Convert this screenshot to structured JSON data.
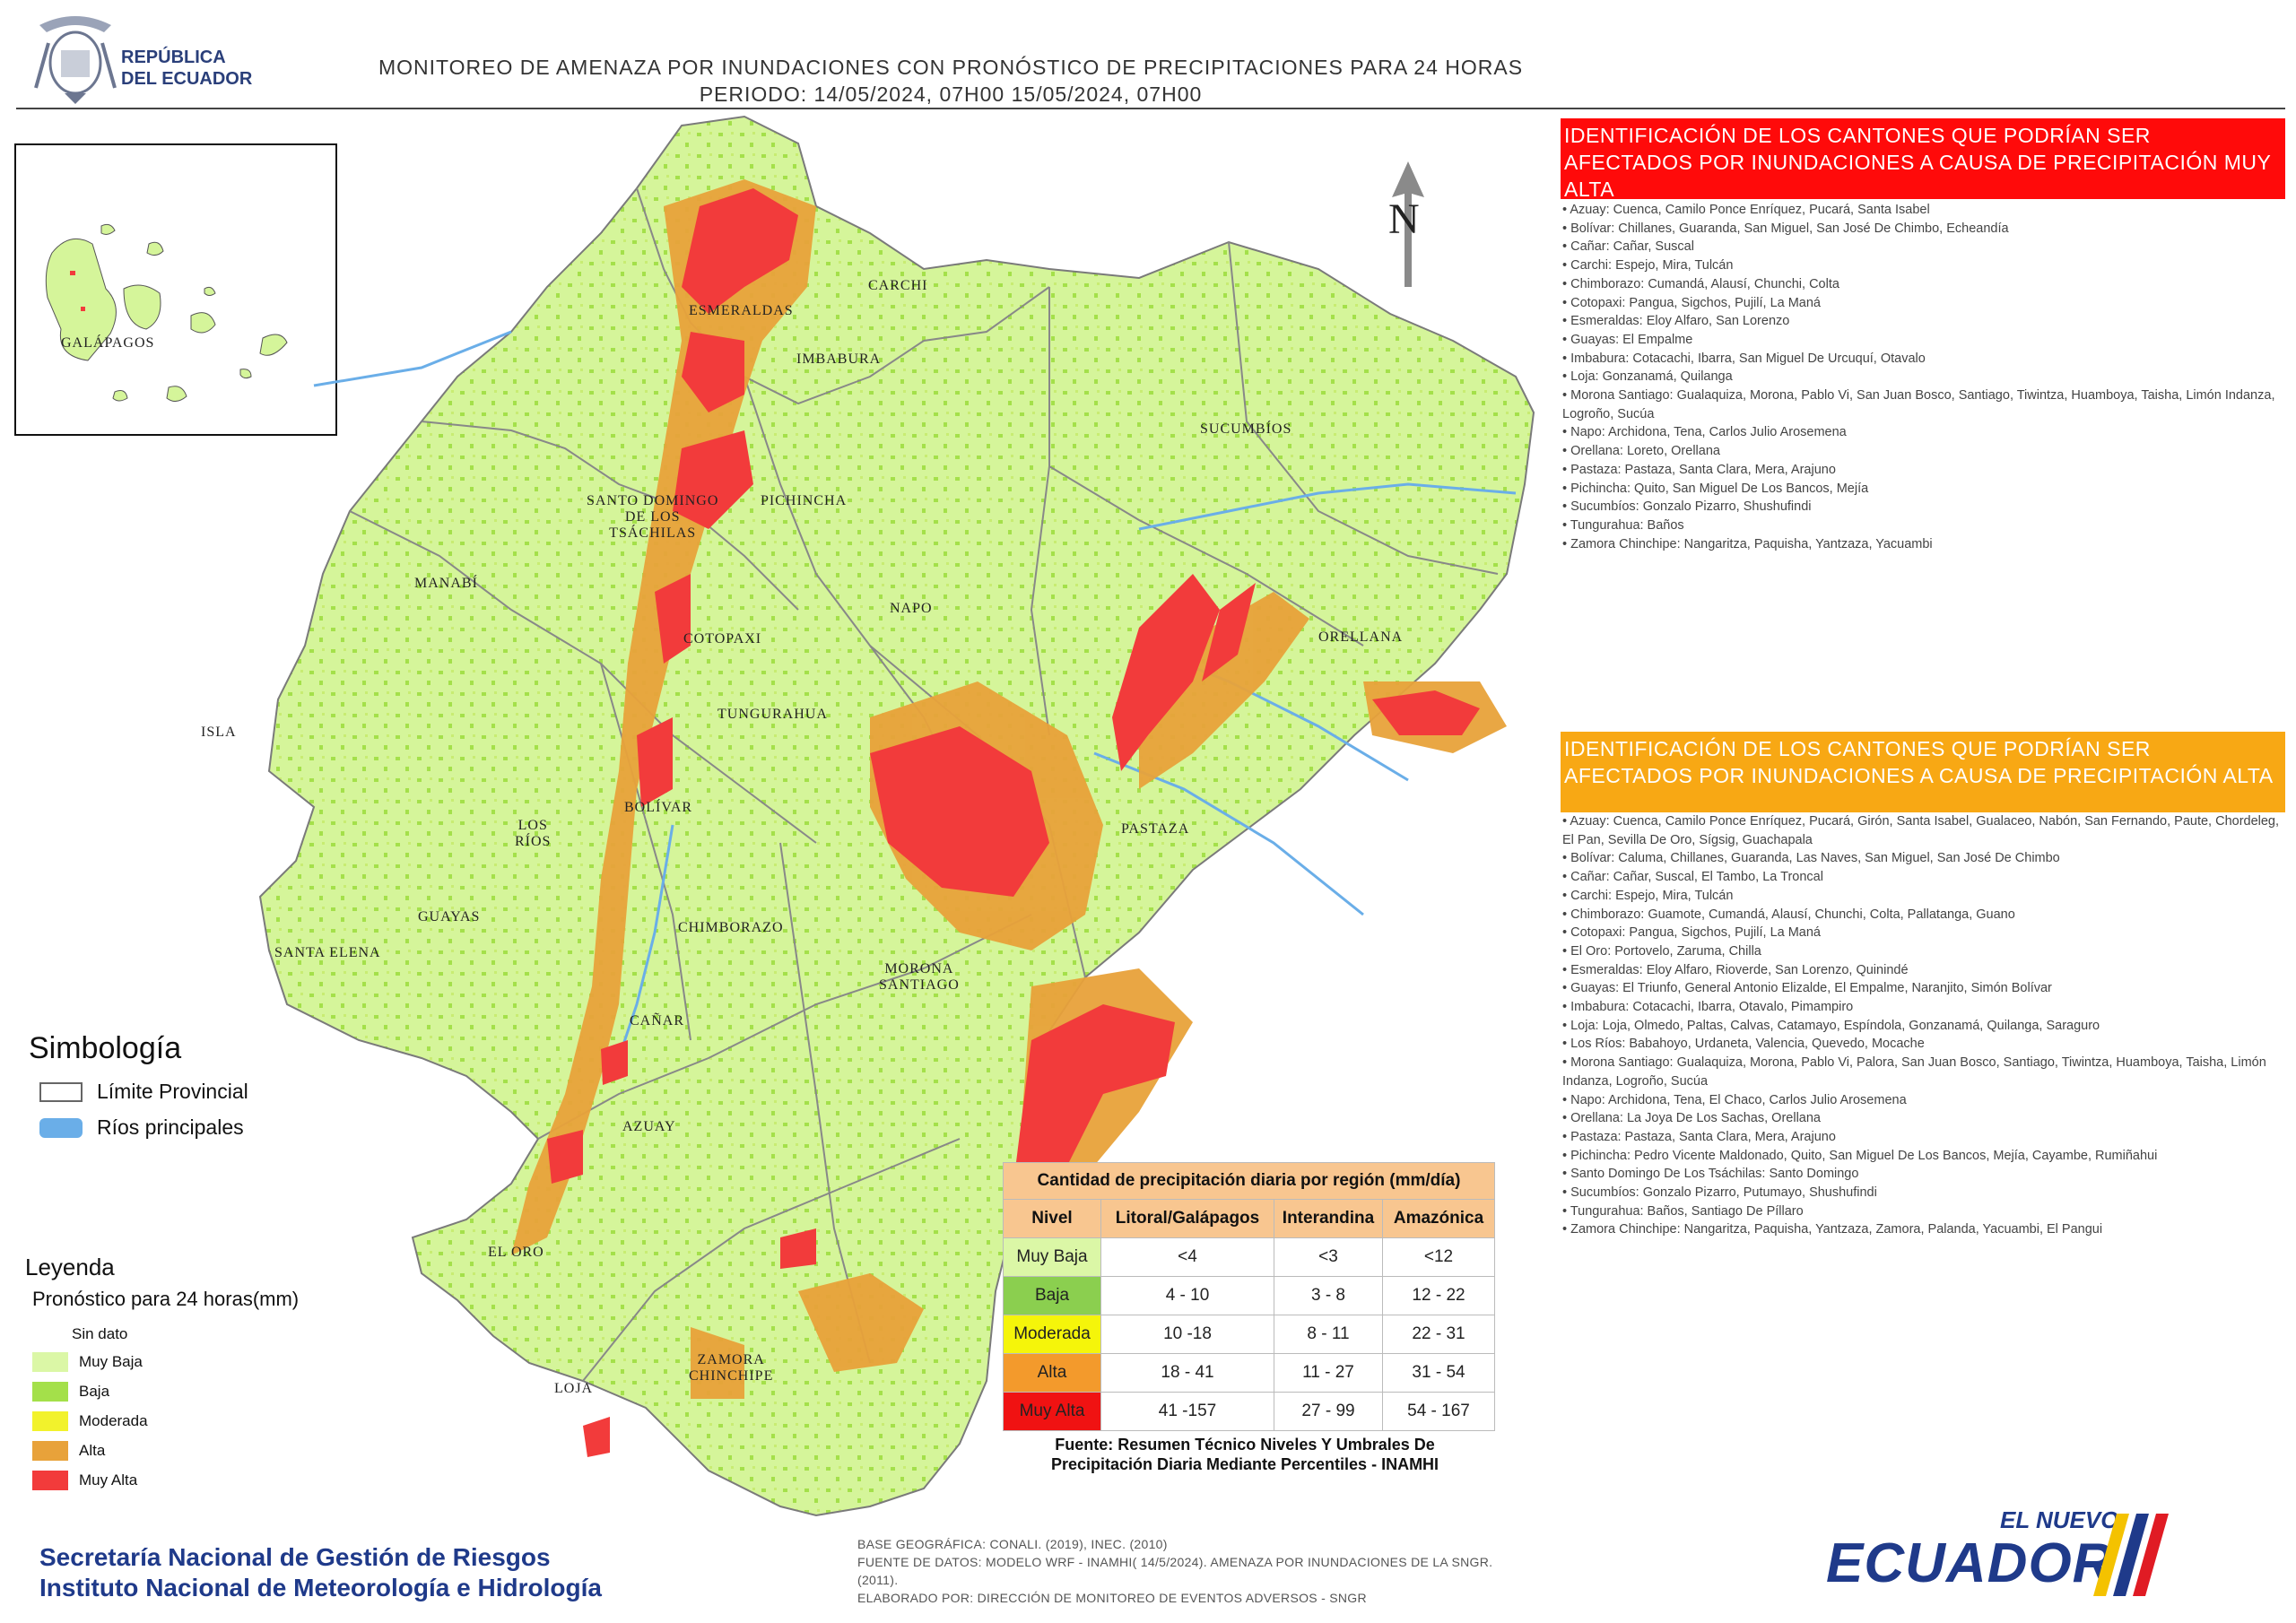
{
  "header": {
    "logo_line1": "REPÚBLICA",
    "logo_line2": "DEL ECUADOR",
    "title_line1": "MONITOREO DE AMENAZA POR INUNDACIONES  CON PRONÓSTICO DE  PRECIPITACIONES PARA 24 HORAS",
    "title_line2": "PERIODO: 14/05/2024, 07H00 15/05/2024, 07H00"
  },
  "map": {
    "inset_label": "GALÁPAGOS",
    "north_label": "N",
    "provinces": {
      "carchi": "CARCHI",
      "esmeraldas": "ESMERALDAS",
      "imbabura": "IMBABURA",
      "sucumbios": "SUCUMBÍOS",
      "santo_domingo": "SANTO DOMINGO\nDE LOS\nTSÁCHILAS",
      "pichincha": "PICHINCHA",
      "manabi": "MANABÍ",
      "napo": "NAPO",
      "orellana": "ORELLANA",
      "cotopaxi": "COTOPAXI",
      "isla": "ISLA",
      "tungurahua": "TUNGURAHUA",
      "bolivar": "BOLÍVAR",
      "los_rios": "LOS\nRÍOS",
      "pastaza": "PASTAZA",
      "guayas": "GUAYAS",
      "chimborazo": "CHIMBORAZO",
      "santa_elena": "SANTA ELENA",
      "morona": "MORONA\nSANTIAGO",
      "canar": "CAÑAR",
      "azuay": "AZUAY",
      "el_oro": "EL ORO",
      "zamora": "ZAMORA\nCHINCHIPE",
      "loja": "LOJA"
    }
  },
  "panel_muy_alta": {
    "title": "IDENTIFICACIÓN DE LOS CANTONES QUE PODRÍAN SER AFECTADOS POR INUNDACIONES  A CAUSA DE PRECIPITACIÓN MUY ALTA",
    "items": [
      "Azuay: Cuenca, Camilo Ponce Enríquez, Pucará, Santa Isabel",
      "Bolívar: Chillanes, Guaranda, San Miguel, San José De Chimbo, Echeandía",
      "Cañar: Cañar, Suscal",
      "Carchi: Espejo, Mira, Tulcán",
      "Chimborazo: Cumandá, Alausí, Chunchi, Colta",
      "Cotopaxi: Pangua, Sigchos, Pujilí, La Maná",
      "Esmeraldas: Eloy Alfaro, San Lorenzo",
      "Guayas: El Empalme",
      "Imbabura: Cotacachi, Ibarra, San Miguel De Urcuquí, Otavalo",
      "Loja: Gonzanamá, Quilanga",
      "Morona Santiago: Gualaquiza, Morona, Pablo Vi, San Juan Bosco, Santiago, Tiwintza, Huamboya, Taisha, Limón Indanza, Logroño, Sucúa",
      "Napo: Archidona, Tena, Carlos Julio Arosemena",
      "Orellana: Loreto, Orellana",
      "Pastaza: Pastaza, Santa Clara, Mera, Arajuno",
      "Pichincha: Quito, San Miguel De Los Bancos, Mejía",
      "Sucumbíos: Gonzalo Pizarro, Shushufindi",
      "Tungurahua: Baños",
      "Zamora Chinchipe: Nangaritza, Paquisha, Yantzaza, Yacuambi"
    ]
  },
  "panel_alta": {
    "title": "IDENTIFICACIÓN DE LOS CANTONES QUE  PODRÍAN SER AFECTADOS POR INUNDACIONES  A CAUSA DE PRECIPITACIÓN  ALTA",
    "items": [
      "Azuay: Cuenca, Camilo Ponce Enríquez, Pucará, Girón, Santa Isabel, Gualaceo, Nabón, San Fernando, Paute, Chordeleg, El Pan, Sevilla De Oro, Sígsig, Guachapala",
      "Bolívar: Caluma, Chillanes, Guaranda, Las Naves, San Miguel, San José De Chimbo",
      "Cañar: Cañar, Suscal, El Tambo, La Troncal",
      "Carchi: Espejo, Mira, Tulcán",
      "Chimborazo: Guamote, Cumandá, Alausí, Chunchi, Colta, Pallatanga, Guano",
      "Cotopaxi: Pangua, Sigchos, Pujilí, La Maná",
      "El Oro: Portovelo, Zaruma, Chilla",
      "Esmeraldas: Eloy Alfaro, Rioverde, San Lorenzo, Quinindé",
      "Guayas: El Triunfo, General Antonio Elizalde, El Empalme, Naranjito, Simón Bolívar",
      "Imbabura: Cotacachi, Ibarra, Otavalo, Pimampiro",
      "Loja: Loja, Olmedo, Paltas, Calvas, Catamayo, Espíndola, Gonzanamá, Quilanga, Saraguro",
      "Los Ríos: Babahoyo, Urdaneta, Valencia, Quevedo, Mocache",
      "Morona Santiago: Gualaquiza, Morona, Pablo Vi, Palora, San Juan Bosco, Santiago, Tiwintza, Huamboya, Taisha, Limón Indanza, Logroño, Sucúa",
      "Napo: Archidona, Tena, El Chaco, Carlos Julio Arosemena",
      "Orellana: La Joya De Los Sachas, Orellana",
      "Pastaza: Pastaza, Santa Clara, Mera, Arajuno",
      "Pichincha: Pedro Vicente Maldonado, Quito, San Miguel De Los Bancos, Mejía, Cayambe, Rumiñahui",
      "Santo Domingo De Los Tsáchilas: Santo Domingo",
      "Sucumbíos: Gonzalo Pizarro, Putumayo, Shushufindi",
      "Tungurahua: Baños, Santiago De Píllaro",
      "Zamora Chinchipe: Nangaritza, Paquisha, Yantzaza, Zamora, Palanda, Yacuambi, El Pangui"
    ]
  },
  "simbologia": {
    "title": "Simbología",
    "limite": "Límite Provincial",
    "rios": "Ríos principales"
  },
  "leyenda": {
    "title": "Leyenda",
    "subtitle": "Pronóstico para 24 horas(mm)",
    "sin_dato": "Sin dato",
    "classes": [
      {
        "label": "Muy Baja",
        "color": "#dbf7a6"
      },
      {
        "label": "Baja",
        "color": "#a4e04a"
      },
      {
        "label": "Moderada",
        "color": "#f2f22c"
      },
      {
        "label": "Alta",
        "color": "#e8a23a"
      },
      {
        "label": "Muy Alta",
        "color": "#f23b3b"
      }
    ]
  },
  "precip_table": {
    "title": "Cantidad de precipitación diaria por región (mm/día)",
    "headers": [
      "Nivel",
      "Litoral/Galápagos",
      "Interandina",
      "Amazónica"
    ],
    "rows": [
      {
        "nivel": "Muy Baja",
        "litoral": "<4",
        "interandina": "<3",
        "amazonica": "<12",
        "color": "#dbf7a6"
      },
      {
        "nivel": "Baja",
        "litoral": "4 - 10",
        "interandina": "3 - 8",
        "amazonica": "12 - 22",
        "color": "#8bcf4f"
      },
      {
        "nivel": "Moderada",
        "litoral": "10 -18",
        "interandina": "8 - 11",
        "amazonica": "22 - 31",
        "color": "#f5f50a"
      },
      {
        "nivel": "Alta",
        "litoral": "18 - 41",
        "interandina": "11 - 27",
        "amazonica": "31 - 54",
        "color": "#f39a2c"
      },
      {
        "nivel": "Muy Alta",
        "litoral": "41 -157",
        "interandina": "27 - 99",
        "amazonica": "54 - 167",
        "color": "#f01212"
      }
    ],
    "source_line1": "Fuente: Resumen Técnico Niveles Y Umbrales De",
    "source_line2": "Precipitación Diaria Mediante Percentiles - INAMHI"
  },
  "footer": {
    "org_line1": "Secretaría Nacional de Gestión de Riesgos",
    "org_line2": "Instituto Nacional de Meteorología e Hidrología",
    "base_line1": "BASE GEOGRÁFICA: CONALI. (2019), INEC. (2010)",
    "base_line2": "FUENTE DE DATOS: MODELO WRF - INAMHI( 14/5/2024).  AMENAZA POR INUNDACIONES DE LA SNGR. (2011).",
    "base_line3": "ELABORADO POR: DIRECCIÓN DE MONITOREO DE EVENTOS ADVERSOS - SNGR",
    "brand_small": "EL NUEVO",
    "brand_big": "ECUADOR"
  },
  "colors": {
    "panel_muy_alta": "#ff0a0a",
    "panel_alta": "#f8a814",
    "map_base": "#d5f59a",
    "river": "#6aaee8",
    "navy": "#1f3a8a"
  }
}
